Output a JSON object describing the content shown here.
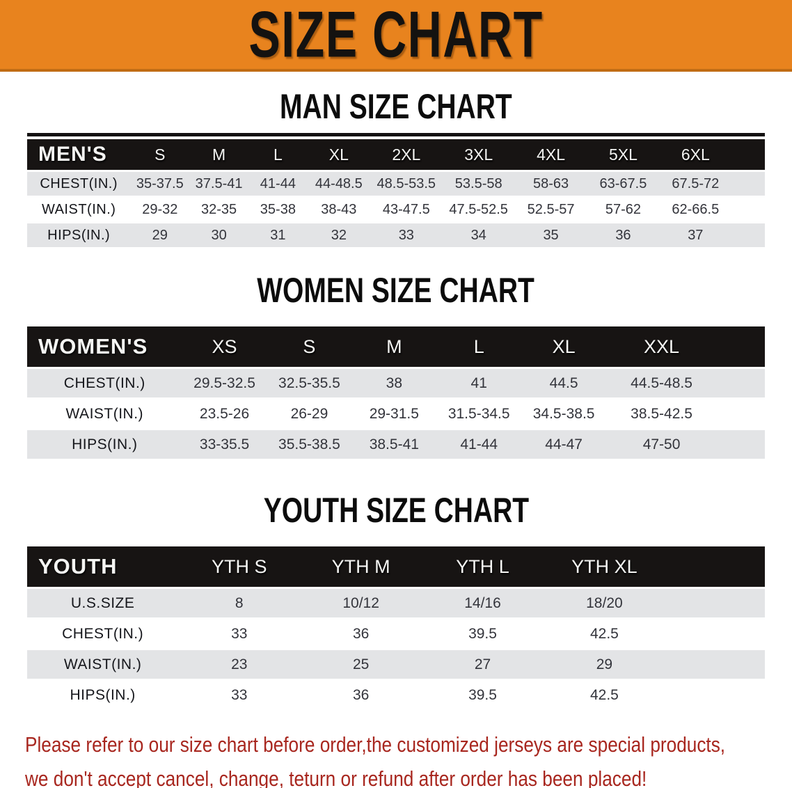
{
  "banner": {
    "title": "SIZE CHART",
    "bg_color": "#E8831E"
  },
  "sections": [
    {
      "id": "men",
      "heading": "MAN SIZE CHART",
      "table": {
        "header_label": "MEN'S",
        "columns": [
          "S",
          "M",
          "L",
          "XL",
          "2XL",
          "3XL",
          "4XL",
          "5XL",
          "6XL"
        ],
        "rows": [
          {
            "label": "CHEST(IN.)",
            "values": [
              "35-37.5",
              "37.5-41",
              "41-44",
              "44-48.5",
              "48.5-53.5",
              "53.5-58",
              "58-63",
              "63-67.5",
              "67.5-72"
            ]
          },
          {
            "label": "WAIST(IN.)",
            "values": [
              "29-32",
              "32-35",
              "35-38",
              "38-43",
              "43-47.5",
              "47.5-52.5",
              "52.5-57",
              "57-62",
              "62-66.5"
            ]
          },
          {
            "label": "HIPS(IN.)",
            "values": [
              "29",
              "30",
              "31",
              "32",
              "33",
              "34",
              "35",
              "36",
              "37"
            ]
          }
        ]
      }
    },
    {
      "id": "women",
      "heading": "WOMEN SIZE CHART",
      "table": {
        "header_label": "WOMEN'S",
        "columns": [
          "XS",
          "S",
          "M",
          "L",
          "XL",
          "XXL"
        ],
        "rows": [
          {
            "label": "CHEST(IN.)",
            "values": [
              "29.5-32.5",
              "32.5-35.5",
              "38",
              "41",
              "44.5",
              "44.5-48.5"
            ]
          },
          {
            "label": "WAIST(IN.)",
            "values": [
              "23.5-26",
              "26-29",
              "29-31.5",
              "31.5-34.5",
              "34.5-38.5",
              "38.5-42.5"
            ]
          },
          {
            "label": "HIPS(IN.)",
            "values": [
              "33-35.5",
              "35.5-38.5",
              "38.5-41",
              "41-44",
              "44-47",
              "47-50"
            ]
          }
        ]
      }
    },
    {
      "id": "youth",
      "heading": "YOUTH SIZE CHART",
      "table": {
        "header_label": "YOUTH",
        "columns": [
          "YTH S",
          "YTH M",
          "YTH L",
          "YTH XL"
        ],
        "rows": [
          {
            "label": "U.S.SIZE",
            "values": [
              "8",
              "10/12",
              "14/16",
              "18/20"
            ]
          },
          {
            "label": "CHEST(IN.)",
            "values": [
              "33",
              "36",
              "39.5",
              "42.5"
            ]
          },
          {
            "label": "WAIST(IN.)",
            "values": [
              "23",
              "25",
              "27",
              "29"
            ]
          },
          {
            "label": "HIPS(IN.)",
            "values": [
              "33",
              "36",
              "39.5",
              "42.5"
            ]
          }
        ]
      }
    }
  ],
  "disclaimer": {
    "line1": "Please refer to our size chart before order,the customized jerseys are special products,",
    "line2": "we don't accept cancel, change, teturn or refund after order has been placed!",
    "color": "#A8271F"
  },
  "chart_data": [
    {
      "type": "table",
      "title": "MAN SIZE CHART",
      "columns": [
        "MEN'S",
        "S",
        "M",
        "L",
        "XL",
        "2XL",
        "3XL",
        "4XL",
        "5XL",
        "6XL"
      ],
      "rows": [
        [
          "CHEST(IN.)",
          "35-37.5",
          "37.5-41",
          "41-44",
          "44-48.5",
          "48.5-53.5",
          "53.5-58",
          "58-63",
          "63-67.5",
          "67.5-72"
        ],
        [
          "WAIST(IN.)",
          "29-32",
          "32-35",
          "35-38",
          "38-43",
          "43-47.5",
          "47.5-52.5",
          "52.5-57",
          "57-62",
          "62-66.5"
        ],
        [
          "HIPS(IN.)",
          "29",
          "30",
          "31",
          "32",
          "33",
          "34",
          "35",
          "36",
          "37"
        ]
      ]
    },
    {
      "type": "table",
      "title": "WOMEN SIZE CHART",
      "columns": [
        "WOMEN'S",
        "XS",
        "S",
        "M",
        "L",
        "XL",
        "XXL"
      ],
      "rows": [
        [
          "CHEST(IN.)",
          "29.5-32.5",
          "32.5-35.5",
          "38",
          "41",
          "44.5",
          "44.5-48.5"
        ],
        [
          "WAIST(IN.)",
          "23.5-26",
          "26-29",
          "29-31.5",
          "31.5-34.5",
          "34.5-38.5",
          "38.5-42.5"
        ],
        [
          "HIPS(IN.)",
          "33-35.5",
          "35.5-38.5",
          "38.5-41",
          "41-44",
          "44-47",
          "47-50"
        ]
      ]
    },
    {
      "type": "table",
      "title": "YOUTH SIZE CHART",
      "columns": [
        "YOUTH",
        "YTH S",
        "YTH M",
        "YTH L",
        "YTH XL"
      ],
      "rows": [
        [
          "U.S.SIZE",
          "8",
          "10/12",
          "14/16",
          "18/20"
        ],
        [
          "CHEST(IN.)",
          "33",
          "36",
          "39.5",
          "42.5"
        ],
        [
          "WAIST(IN.)",
          "23",
          "25",
          "27",
          "29"
        ],
        [
          "HIPS(IN.)",
          "33",
          "36",
          "39.5",
          "42.5"
        ]
      ]
    }
  ]
}
